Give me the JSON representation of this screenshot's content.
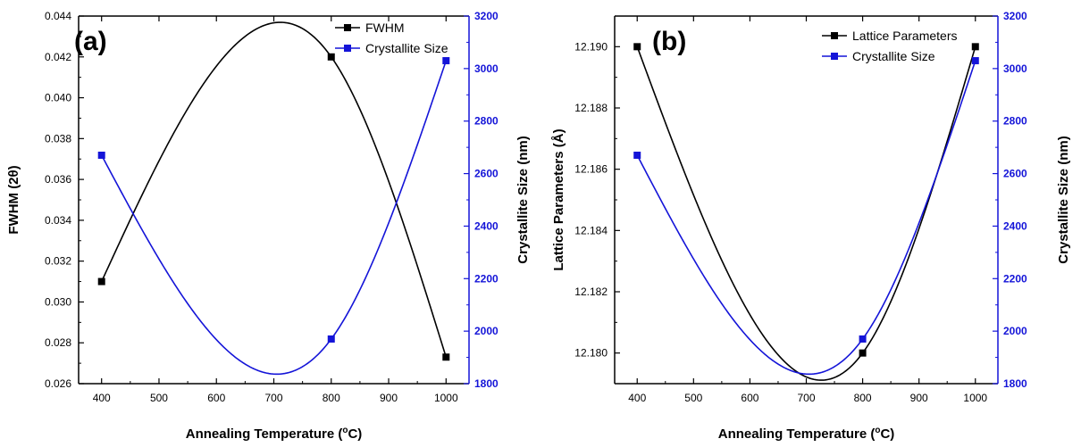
{
  "colors": {
    "series1": "#000000",
    "series2": "#1414d8",
    "right_axis": "#1414d8"
  },
  "chart_data": [
    {
      "type": "line",
      "panel_label": "(a)",
      "xlabel_main": "Annealing Temperature (",
      "xlabel_sup": "o",
      "xlabel_end": "C)",
      "ylabel": "FWHM (2θ)",
      "y2label": "Crystallite Size (nm)",
      "xlim": [
        360,
        1040
      ],
      "xticks": [
        "400",
        "500",
        "600",
        "700",
        "800",
        "900",
        "1000"
      ],
      "ylim": [
        0.026,
        0.044
      ],
      "yticks": [
        "0.026",
        "0.028",
        "0.030",
        "0.032",
        "0.034",
        "0.036",
        "0.038",
        "0.040",
        "0.042",
        "0.044"
      ],
      "y2lim": [
        1800,
        3200
      ],
      "y2ticks": [
        "1800",
        "2000",
        "2200",
        "2400",
        "2600",
        "2800",
        "3000",
        "3200"
      ],
      "legend_position": "top-right",
      "series": [
        {
          "name": "FWHM",
          "axis": "left",
          "x": [
            400,
            800,
            1000
          ],
          "values": [
            0.031,
            0.042,
            0.0273
          ]
        },
        {
          "name": "Crystallite Size",
          "axis": "right",
          "x": [
            400,
            800,
            1000
          ],
          "values": [
            2670,
            1970,
            3030
          ]
        }
      ]
    },
    {
      "type": "line",
      "panel_label": "(b)",
      "xlabel_main": "Annealing Temperature (",
      "xlabel_sup": "o",
      "xlabel_end": "C)",
      "ylabel": "Lattice Parameters (Å)",
      "y2label": "Crystallite Size (nm)",
      "xlim": [
        360,
        1040
      ],
      "xticks": [
        "400",
        "500",
        "600",
        "700",
        "800",
        "900",
        "1000"
      ],
      "ylim": [
        12.179,
        12.191
      ],
      "yticks": [
        "12.180",
        "12.182",
        "12.184",
        "12.186",
        "12.188",
        "12.190"
      ],
      "y2lim": [
        1800,
        3200
      ],
      "y2ticks": [
        "1800",
        "2000",
        "2200",
        "2400",
        "2600",
        "2800",
        "3000",
        "3200"
      ],
      "legend_position": "top-right",
      "series": [
        {
          "name": "Lattice Parameters",
          "axis": "left",
          "x": [
            400,
            800,
            1000
          ],
          "values": [
            12.19,
            12.18,
            12.19
          ]
        },
        {
          "name": "Crystallite Size",
          "axis": "right",
          "x": [
            400,
            800,
            1000
          ],
          "values": [
            2670,
            1970,
            3030
          ]
        }
      ]
    }
  ]
}
